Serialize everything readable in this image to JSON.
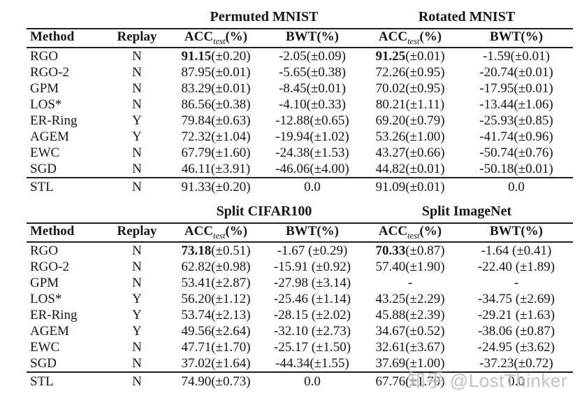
{
  "page": {
    "background": "#ffffff",
    "text_color": "#161616",
    "rule_color": "#1e1e1e"
  },
  "watermark": {
    "text": "知乎 @LostThinker",
    "color": "#b6b6b6"
  },
  "tables": [
    {
      "group1": "Permuted MNIST",
      "group2": "Rotated MNIST",
      "headers": [
        {
          "pre": "Method",
          "sub": "",
          "post": ""
        },
        {
          "pre": "Replay",
          "sub": "",
          "post": ""
        },
        {
          "pre": "ACC",
          "sub": "test",
          "post": "(%)"
        },
        {
          "pre": "BWT(%)",
          "sub": "",
          "post": ""
        },
        {
          "pre": "ACC",
          "sub": "test",
          "post": "(%)"
        },
        {
          "pre": "BWT(%)",
          "sub": "",
          "post": ""
        }
      ],
      "rows": [
        {
          "method": "RGO",
          "replay": "N",
          "rule_above": false,
          "cells": [
            {
              "bold": "91.15",
              "rest": "(±0.20)"
            },
            {
              "bold": "",
              "rest": "-2.05(±0.09)"
            },
            {
              "bold": "91.25",
              "rest": "(±0.01)"
            },
            {
              "bold": "",
              "rest": "-1.59(±0.01)"
            }
          ]
        },
        {
          "method": "RGO-2",
          "replay": "N",
          "rule_above": false,
          "cells": [
            {
              "bold": "",
              "rest": "87.95(±0.01)"
            },
            {
              "bold": "",
              "rest": "-5.65(±0.38)"
            },
            {
              "bold": "",
              "rest": "72.26(±0.95)"
            },
            {
              "bold": "",
              "rest": "-20.74(±0.01)"
            }
          ]
        },
        {
          "method": "GPM",
          "replay": "N",
          "rule_above": false,
          "cells": [
            {
              "bold": "",
              "rest": "83.29(±0.01)"
            },
            {
              "bold": "",
              "rest": "-8.45(±0.01)"
            },
            {
              "bold": "",
              "rest": "70.02(±0.95)"
            },
            {
              "bold": "",
              "rest": "-17.95(±0.01)"
            }
          ]
        },
        {
          "method": "LOS*",
          "replay": "N",
          "rule_above": false,
          "cells": [
            {
              "bold": "",
              "rest": "86.56(±0.38)"
            },
            {
              "bold": "",
              "rest": "-4.10(±0.33)"
            },
            {
              "bold": "",
              "rest": "80.21(±1.11)"
            },
            {
              "bold": "",
              "rest": "-13.44(±1.06)"
            }
          ]
        },
        {
          "method": "ER-Ring",
          "replay": "Y",
          "rule_above": false,
          "cells": [
            {
              "bold": "",
              "rest": "79.84(±0.63)"
            },
            {
              "bold": "",
              "rest": "-12.88(±0.65)"
            },
            {
              "bold": "",
              "rest": "69.20(±0.79)"
            },
            {
              "bold": "",
              "rest": "-25.93(±0.85)"
            }
          ]
        },
        {
          "method": "AGEM",
          "replay": "Y",
          "rule_above": false,
          "cells": [
            {
              "bold": "",
              "rest": "72.32(±1.04)"
            },
            {
              "bold": "",
              "rest": "-19.94(±1.02)"
            },
            {
              "bold": "",
              "rest": "53.26(±1.00)"
            },
            {
              "bold": "",
              "rest": "-41.74(±0.96)"
            }
          ]
        },
        {
          "method": "EWC",
          "replay": "N",
          "rule_above": false,
          "cells": [
            {
              "bold": "",
              "rest": "67.79(±1.60)"
            },
            {
              "bold": "",
              "rest": "-24.38(±1.53)"
            },
            {
              "bold": "",
              "rest": "43.27(±0.66)"
            },
            {
              "bold": "",
              "rest": "-50.74(±0.76)"
            }
          ]
        },
        {
          "method": "SGD",
          "replay": "N",
          "rule_above": false,
          "cells": [
            {
              "bold": "",
              "rest": "46.11(±3.91)"
            },
            {
              "bold": "",
              "rest": "-46.06(±4.00)"
            },
            {
              "bold": "",
              "rest": "44.82(±0.01)"
            },
            {
              "bold": "",
              "rest": "-50.18(±0.01)"
            }
          ]
        },
        {
          "method": "STL",
          "replay": "N",
          "rule_above": true,
          "cells": [
            {
              "bold": "",
              "rest": "91.33(±0.20)"
            },
            {
              "bold": "",
              "rest": "0.0"
            },
            {
              "bold": "",
              "rest": "91.09(±0.01)"
            },
            {
              "bold": "",
              "rest": "0.0"
            }
          ]
        }
      ]
    },
    {
      "group1": "Split CIFAR100",
      "group2": "Split ImageNet",
      "headers": [
        {
          "pre": "Method",
          "sub": "",
          "post": ""
        },
        {
          "pre": "Replay",
          "sub": "",
          "post": ""
        },
        {
          "pre": "ACC",
          "sub": "test",
          "post": "(%)"
        },
        {
          "pre": "BWT(%)",
          "sub": "",
          "post": ""
        },
        {
          "pre": "ACC",
          "sub": "test",
          "post": "(%)"
        },
        {
          "pre": "BWT(%)",
          "sub": "",
          "post": ""
        }
      ],
      "rows": [
        {
          "method": "RGO",
          "replay": "N",
          "rule_above": false,
          "cells": [
            {
              "bold": "73.18",
              "rest": "(±0.51)"
            },
            {
              "bold": "",
              "rest": "-1.67 (±0.29)"
            },
            {
              "bold": "70.33",
              "rest": "(±0.87)"
            },
            {
              "bold": "",
              "rest": "-1.64 (±0.41)"
            }
          ]
        },
        {
          "method": "RGO-2",
          "replay": "N",
          "rule_above": false,
          "cells": [
            {
              "bold": "",
              "rest": "62.82(±0.98)"
            },
            {
              "bold": "",
              "rest": "-15.91 (±0.92)"
            },
            {
              "bold": "",
              "rest": "57.40(±1.90)"
            },
            {
              "bold": "",
              "rest": "-22.40 (±1.89)"
            }
          ]
        },
        {
          "method": "GPM",
          "replay": "N",
          "rule_above": false,
          "cells": [
            {
              "bold": "",
              "rest": "53.41(±2.87)"
            },
            {
              "bold": "",
              "rest": "-27.98 (±3.14)"
            },
            {
              "bold": "",
              "rest": "-"
            },
            {
              "bold": "",
              "rest": "-"
            }
          ]
        },
        {
          "method": "LOS*",
          "replay": "Y",
          "rule_above": false,
          "cells": [
            {
              "bold": "",
              "rest": "56.20(±1.12)"
            },
            {
              "bold": "",
              "rest": "-25.46 (±1.14)"
            },
            {
              "bold": "",
              "rest": "43.25(±2.29)"
            },
            {
              "bold": "",
              "rest": "-34.75 (±2.69)"
            }
          ]
        },
        {
          "method": "ER-Ring",
          "replay": "Y",
          "rule_above": false,
          "cells": [
            {
              "bold": "",
              "rest": "53.74(±2.13)"
            },
            {
              "bold": "",
              "rest": "-28.15 (±2.02)"
            },
            {
              "bold": "",
              "rest": "45.88(±2.39)"
            },
            {
              "bold": "",
              "rest": "-29.21 (±1.63)"
            }
          ]
        },
        {
          "method": "AGEM",
          "replay": "Y",
          "rule_above": false,
          "cells": [
            {
              "bold": "",
              "rest": "49.56(±2.64)"
            },
            {
              "bold": "",
              "rest": "-32.10 (±2.73)"
            },
            {
              "bold": "",
              "rest": "34.67(±0.52)"
            },
            {
              "bold": "",
              "rest": "-38.06 (±0.87)"
            }
          ]
        },
        {
          "method": "EWC",
          "replay": "N",
          "rule_above": false,
          "cells": [
            {
              "bold": "",
              "rest": "47.71(±1.70)"
            },
            {
              "bold": "",
              "rest": "-25.17 (±1.50)"
            },
            {
              "bold": "",
              "rest": "32.61(±3.67)"
            },
            {
              "bold": "",
              "rest": "-24.95 (±3.62)"
            }
          ]
        },
        {
          "method": "SGD",
          "replay": "N",
          "rule_above": false,
          "cells": [
            {
              "bold": "",
              "rest": "37.02(±1.64)"
            },
            {
              "bold": "",
              "rest": "-44.34(±1.55)"
            },
            {
              "bold": "",
              "rest": "37.69(±1.00)"
            },
            {
              "bold": "",
              "rest": "-37.23(±0.72)"
            }
          ]
        },
        {
          "method": "STL",
          "replay": "N",
          "rule_above": true,
          "cells": [
            {
              "bold": "",
              "rest": "74.90(±0.73)"
            },
            {
              "bold": "",
              "rest": "0.0"
            },
            {
              "bold": "",
              "rest": "67.76(±1.70)"
            },
            {
              "bold": "",
              "rest": "0.0"
            }
          ]
        }
      ]
    }
  ]
}
